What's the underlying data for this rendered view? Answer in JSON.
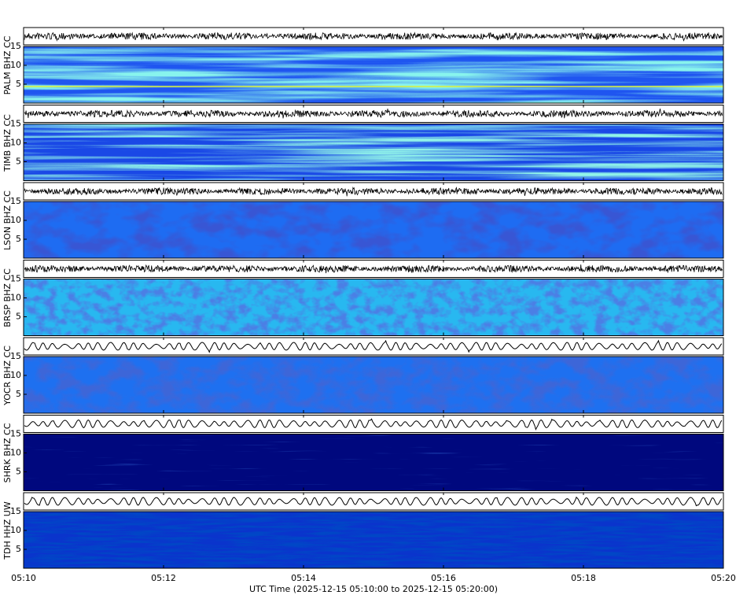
{
  "chart_data": {
    "type": "spectrogram",
    "xlabel": "UTC Time (2025-12-15 05:10:00 to 2025-12-15 05:20:00)",
    "xticks": [
      "05:10",
      "05:12",
      "05:14",
      "05:16",
      "05:18",
      "05:20"
    ],
    "panels": [
      {
        "name": "PALM BHZ CC",
        "ylim": [
          0,
          15
        ],
        "yticks": [
          5,
          10,
          15
        ]
      },
      {
        "name": "TIMB BHZ CC",
        "ylim": [
          0,
          15
        ],
        "yticks": [
          5,
          10,
          15
        ]
      },
      {
        "name": "LSON BHZ CC",
        "ylim": [
          0,
          15
        ],
        "yticks": [
          5,
          10,
          15
        ]
      },
      {
        "name": "BRSP BHZ CC",
        "ylim": [
          0,
          15
        ],
        "yticks": [
          5,
          10,
          15
        ]
      },
      {
        "name": "YOCR BHZ CC",
        "ylim": [
          0,
          15
        ],
        "yticks": [
          5,
          10,
          15
        ]
      },
      {
        "name": "SHRK BHZ CC",
        "ylim": [
          0,
          15
        ],
        "yticks": [
          5,
          10,
          15
        ]
      },
      {
        "name": "TDH HHZ UW",
        "ylim": [
          0,
          15
        ],
        "yticks": [
          5,
          10,
          15
        ]
      }
    ]
  }
}
